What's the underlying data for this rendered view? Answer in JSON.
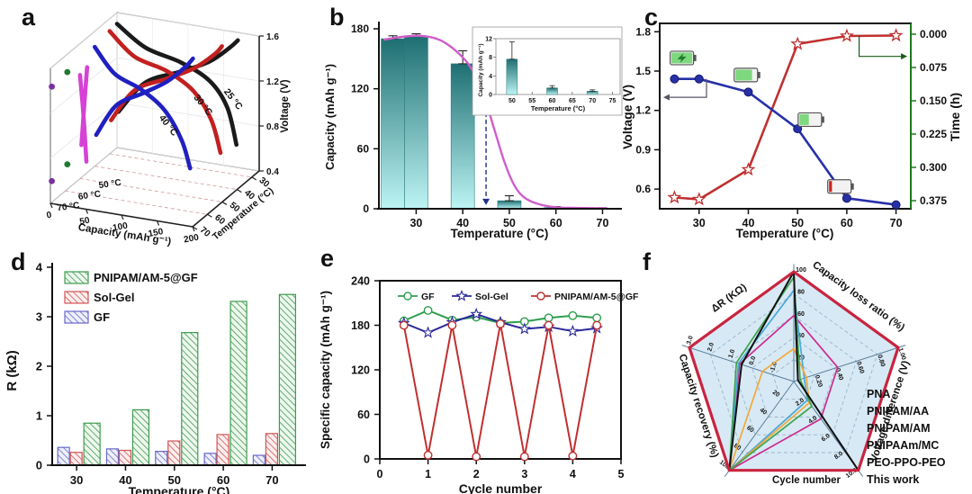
{
  "panel_letters": {
    "a": "a",
    "b": "b",
    "c": "c",
    "d": "d",
    "e": "e",
    "f": "f"
  },
  "chart_data": [
    {
      "id": "a",
      "type": "line3d",
      "xlabel": "Capacity (mAh g⁻¹)",
      "xticks": [
        0,
        50,
        100,
        150,
        200
      ],
      "xlim": [
        0,
        200
      ],
      "ylabel": "Temperature (°C)",
      "yticks": [
        30,
        40,
        50,
        60,
        70
      ],
      "ylim": [
        25,
        70
      ],
      "zlabel": "Voltage (V)",
      "zticks": [
        0.4,
        0.8,
        1.2,
        1.6
      ],
      "zlim": [
        0.4,
        1.6
      ],
      "series": [
        {
          "name": "25 °C",
          "color": "#1a1a1a",
          "temp": 25,
          "discharge": [
            [
              0,
              1.5
            ],
            [
              40,
              1.33
            ],
            [
              90,
              1.25
            ],
            [
              130,
              1.13
            ],
            [
              155,
              0.92
            ],
            [
              168,
              0.6
            ]
          ],
          "charge": [
            [
              2,
              0.72
            ],
            [
              40,
              1.02
            ],
            [
              90,
              1.17
            ],
            [
              130,
              1.3
            ],
            [
              158,
              1.45
            ],
            [
              170,
              1.53
            ]
          ],
          "label_at": [
            150,
            0.97
          ],
          "label_rot": 52
        },
        {
          "name": "30 °C",
          "color": "#c22020",
          "temp": 30,
          "discharge": [
            [
              0,
              1.49
            ],
            [
              35,
              1.3
            ],
            [
              80,
              1.22
            ],
            [
              118,
              1.08
            ],
            [
              143,
              0.85
            ],
            [
              156,
              0.57
            ]
          ],
          "charge": [
            [
              2,
              0.7
            ],
            [
              35,
              1.0
            ],
            [
              80,
              1.15
            ],
            [
              118,
              1.28
            ],
            [
              148,
              1.44
            ],
            [
              158,
              1.52
            ]
          ],
          "label_at": [
            118,
            0.94
          ],
          "label_rot": 52
        },
        {
          "name": "40 °C",
          "color": "#2020c0",
          "temp": 40,
          "discharge": [
            [
              0,
              1.46
            ],
            [
              28,
              1.25
            ],
            [
              65,
              1.15
            ],
            [
              98,
              1.0
            ],
            [
              122,
              0.76
            ],
            [
              134,
              0.52
            ]
          ],
          "charge": [
            [
              2,
              0.68
            ],
            [
              30,
              0.97
            ],
            [
              68,
              1.12
            ],
            [
              102,
              1.26
            ],
            [
              128,
              1.42
            ],
            [
              138,
              1.5
            ]
          ],
          "label_at": [
            90,
            0.84
          ],
          "label_rot": 52
        },
        {
          "name": "50 °C",
          "color": "#d542d5",
          "temp": 50,
          "discharge": [
            [
              0,
              1.32
            ],
            [
              5,
              0.96
            ],
            [
              9,
              0.56
            ]
          ],
          "charge": [
            [
              2,
              0.7
            ],
            [
              6,
              1.06
            ],
            [
              10,
              1.4
            ]
          ],
          "floor_label": [
            30,
            0
          ]
        },
        {
          "name": "60 °C",
          "color": "#1f7a2f",
          "temp": 60,
          "dots": [
            [
              3,
              1.46
            ],
            [
              3,
              0.64
            ]
          ],
          "floor_label": [
            22,
            0
          ]
        },
        {
          "name": "70 °C",
          "color": "#7a2fa0",
          "temp": 70,
          "dots": [
            [
              2,
              1.44
            ],
            [
              2,
              0.6
            ]
          ],
          "floor_label": [
            13,
            0
          ]
        }
      ]
    },
    {
      "id": "b",
      "type": "bar-line",
      "ylabel": "Capacity (mAh g⁻¹)",
      "yticks": [
        0,
        60,
        120,
        180
      ],
      "ylim": [
        0,
        180
      ],
      "xlabel": "Temperature (°C)",
      "xticks": [
        30,
        40,
        50,
        60,
        70
      ],
      "xlim": [
        22,
        73
      ],
      "bars": {
        "x": [
          25,
          30,
          40,
          50,
          60,
          70
        ],
        "values": [
          170,
          173,
          145,
          8,
          1.2,
          0.5
        ],
        "errors": [
          3,
          2,
          13,
          5,
          1,
          0.5
        ],
        "fill_top": "#1e6f72",
        "fill_bottom": "#bdf4f4",
        "edge": "#2a7a7a"
      },
      "curve": {
        "color": "#cf5ecb",
        "points": [
          [
            23,
            169
          ],
          [
            27,
            172
          ],
          [
            31,
            173
          ],
          [
            35,
            169
          ],
          [
            38,
            160
          ],
          [
            41,
            146
          ],
          [
            43,
            130
          ],
          [
            45,
            106
          ],
          [
            47,
            76
          ],
          [
            49,
            46
          ],
          [
            51,
            24
          ],
          [
            53,
            12
          ],
          [
            56,
            5
          ],
          [
            60,
            1.5
          ],
          [
            65,
            0.8
          ],
          [
            71,
            0.4
          ]
        ]
      },
      "arrow": {
        "x": 45,
        "from": 118,
        "to": 10,
        "color": "#20308a"
      },
      "inset": {
        "ylabel": "Capacity (mAh g⁻¹)",
        "yticks": [
          0,
          4,
          8,
          12
        ],
        "ylim": [
          0,
          12
        ],
        "xlabel": "Temperature (°C)",
        "xticks": [
          50,
          55,
          60,
          65,
          70,
          75
        ],
        "xlim": [
          46,
          76
        ],
        "bars": {
          "x": [
            50,
            60,
            70
          ],
          "values": [
            7.6,
            1.4,
            0.7
          ],
          "errors": [
            3.7,
            0.5,
            0.3
          ]
        }
      }
    },
    {
      "id": "c",
      "type": "dual-line",
      "xlabel": "Temperature (°C)",
      "xticks": [
        30,
        40,
        50,
        60,
        70
      ],
      "xlim": [
        22,
        73
      ],
      "left": {
        "label": "Voltage (V)",
        "ticks": [
          0.6,
          0.9,
          1.2,
          1.5,
          1.8
        ],
        "lim": [
          0.45,
          1.85
        ],
        "color": "#111111"
      },
      "right": {
        "label": "Time (h)",
        "ticks": [
          "0.000",
          "0.075",
          "0.150",
          "0.225",
          "0.300",
          "0.375"
        ],
        "lim": [
          0,
          0.375
        ],
        "inverted": true,
        "color": "#1a7a1a"
      },
      "voltage": {
        "name": "Voltage",
        "color": "#2830a8",
        "x": [
          25,
          30,
          40,
          50,
          60,
          70
        ],
        "values": [
          1.44,
          1.44,
          1.34,
          1.06,
          0.53,
          0.48
        ]
      },
      "time": {
        "name": "Time",
        "color": "#c03030",
        "x": [
          25,
          30,
          40,
          50,
          60,
          70
        ],
        "values": [
          0.368,
          0.372,
          0.305,
          0.022,
          0.004,
          0.003
        ]
      },
      "batteries": [
        {
          "x": 26.5,
          "v": 1.6,
          "level": 1.0,
          "bolt": true,
          "red": false
        },
        {
          "x": 39.5,
          "v": 1.47,
          "level": 0.8,
          "bolt": false,
          "red": false
        },
        {
          "x": 52.5,
          "v": 1.13,
          "level": 0.45,
          "bolt": false,
          "red": false
        },
        {
          "x": 58.5,
          "v": 0.62,
          "level": 0.14,
          "bolt": false,
          "red": true
        }
      ]
    },
    {
      "id": "d",
      "type": "grouped-bar",
      "ylabel": "R (kΩ)",
      "yticks": [
        0,
        1,
        2,
        3,
        4
      ],
      "ylim": [
        0,
        4
      ],
      "xlabel": "Temperature (°C)",
      "categories": [
        30,
        40,
        50,
        60,
        70
      ],
      "legend_order": [
        2,
        1,
        0
      ],
      "series": [
        {
          "name": "GF",
          "color": "#6868c8",
          "tint": "#eef0fa",
          "values": [
            0.36,
            0.33,
            0.28,
            0.24,
            0.2
          ]
        },
        {
          "name": "Sol-Gel",
          "color": "#d05555",
          "tint": "#fbeeee",
          "values": [
            0.26,
            0.3,
            0.49,
            0.62,
            0.64
          ]
        },
        {
          "name": "PNIPAM/AM-5@GF",
          "color": "#3f9b4f",
          "tint": "#eef8ee",
          "values": [
            0.85,
            1.12,
            2.68,
            3.31,
            3.45
          ]
        }
      ]
    },
    {
      "id": "e",
      "type": "line",
      "ylabel": "Specific capacity (mAh g⁻¹)",
      "yticks": [
        0,
        60,
        120,
        180,
        240
      ],
      "ylim": [
        0,
        240
      ],
      "xlabel": "Cycle number",
      "xticks": [
        0,
        1,
        2,
        3,
        4,
        5
      ],
      "xlim": [
        0,
        5
      ],
      "x": [
        0.5,
        1,
        1.5,
        2,
        2.5,
        3,
        3.5,
        4,
        4.5
      ],
      "series": [
        {
          "name": "GF",
          "color": "#2e9e4f",
          "marker": "circle",
          "values": [
            186,
            200,
            187,
            191,
            183,
            185,
            190,
            193,
            190
          ]
        },
        {
          "name": "Sol-Gel",
          "color": "#2a2a9a",
          "marker": "star",
          "values": [
            183,
            170,
            184,
            195,
            184,
            175,
            178,
            172,
            176
          ]
        },
        {
          "name": "PNIPAM/AM-5@GF",
          "color": "#c03030",
          "marker": "circle",
          "values": [
            180,
            5,
            180,
            3,
            182,
            3,
            180,
            4,
            180
          ]
        }
      ]
    },
    {
      "id": "f",
      "type": "radar",
      "fill": "#d7e9f5",
      "values_normalized": true,
      "axes": [
        {
          "label": "Capacity loss ratio (%)",
          "color": "#b01020",
          "ticks": [
            "20",
            "40",
            "60",
            "80",
            "100"
          ]
        },
        {
          "label": "Voltage difference (V)",
          "color": "#c030a0",
          "ticks": [
            "0.20",
            "0.40",
            "0.60",
            "0.80",
            "1.00"
          ]
        },
        {
          "label": "Cycle number",
          "color": "#8a6d1a",
          "ticks": [
            "2.0",
            "4.0",
            "6.0",
            "8.0",
            "10.0"
          ]
        },
        {
          "label": "Capacity recovery (%)",
          "color": "#222222",
          "ticks": [
            "20",
            "40",
            "60",
            "80",
            "100"
          ]
        },
        {
          "label": "ΔR (KΩ)",
          "color": "#2f8a3f",
          "ticks": [
            "-1.0",
            "0.0",
            "1.0",
            "2.0",
            "3.0"
          ]
        }
      ],
      "series": [
        {
          "name": "PNA",
          "color": "#cc2a8e",
          "values": [
            0.6,
            0.42,
            0.42,
            1.0,
            0.52
          ],
          "width": 1.7
        },
        {
          "name": "PNIPAM/AA",
          "color": "#4aa8d8",
          "values": [
            0.83,
            0.1,
            0.21,
            1.0,
            0.53
          ],
          "width": 1.7
        },
        {
          "name": "PNIPAM/AM",
          "color": "#f2a93b",
          "values": [
            0.3,
            0.12,
            0.24,
            1.0,
            0.3
          ],
          "width": 1.7
        },
        {
          "name": "PNIPAAm/MC",
          "color": "#3fa34d",
          "values": [
            0.95,
            0.06,
            0.28,
            1.0,
            0.55
          ],
          "width": 1.7
        },
        {
          "name": "PEO-PPO-PEO",
          "color": "#111111",
          "values": [
            1.0,
            0.04,
            1.0,
            1.0,
            0.5
          ],
          "width": 2
        },
        {
          "name": "This work",
          "color": "#c9243f",
          "values": [
            1.0,
            1.0,
            1.0,
            1.0,
            1.0
          ],
          "width": 3.2
        }
      ]
    }
  ]
}
